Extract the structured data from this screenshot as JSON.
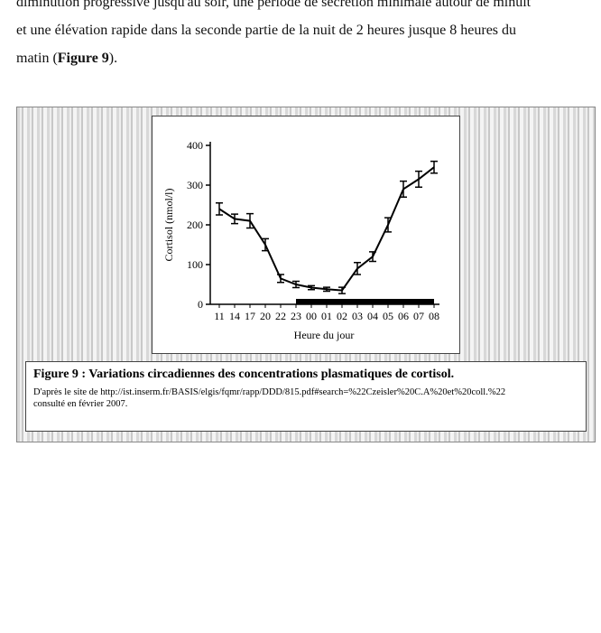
{
  "text": {
    "lines": [
      "diminution progressive jusqu'au soir, une période de sécrétion minimale autour de minuit",
      "et une élévation rapide dans la seconde partie de la nuit de 2 heures jusque 8 heures du",
      "matin ("
    ],
    "reference": "Figure 9",
    "end": ")."
  },
  "figure": {
    "caption": "Figure 9 : Variations circadiennes des concentrations plasmatiques de cortisol.",
    "source": "D'après le site de http://ist.inserm.fr/BASIS/elgis/fqmr/rapp/DDD/815.pdf#search=%22Czeisler%20C.A%20et%20coll.%22",
    "consulted": "consulté en février 2007."
  },
  "chart_data": {
    "type": "line",
    "x_label": "Heure du jour",
    "y_label": "Cortisol (nmol/l)",
    "categories": [
      "11",
      "14",
      "17",
      "20",
      "22",
      "23",
      "00",
      "01",
      "02",
      "03",
      "04",
      "05",
      "06",
      "07",
      "08"
    ],
    "values": [
      240,
      215,
      210,
      150,
      65,
      50,
      42,
      38,
      35,
      90,
      120,
      200,
      290,
      315,
      345
    ],
    "errors": [
      15,
      12,
      18,
      15,
      10,
      8,
      5,
      5,
      8,
      15,
      12,
      18,
      20,
      20,
      15
    ],
    "color": "#000000",
    "ylim": [
      0,
      400
    ],
    "yticks": [
      0,
      100,
      200,
      300,
      400
    ]
  }
}
